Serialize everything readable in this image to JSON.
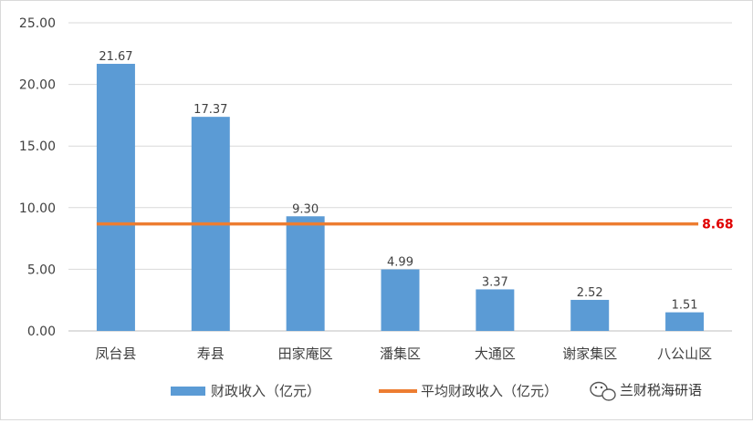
{
  "chart_data": {
    "type": "bar",
    "categories": [
      "凤台县",
      "寿县",
      "田家庵区",
      "潘集区",
      "大通区",
      "谢家集区",
      "八公山区"
    ],
    "series": [
      {
        "name": "财政收入（亿元）",
        "type": "bar",
        "values": [
          21.67,
          17.37,
          9.3,
          4.99,
          3.37,
          2.52,
          1.51
        ],
        "color": "#5b9bd5"
      },
      {
        "name": "平均财政收入（亿元）",
        "type": "line",
        "values": [
          8.68,
          8.68,
          8.68,
          8.68,
          8.68,
          8.68,
          8.68
        ],
        "color": "#ed7d31"
      }
    ],
    "data_labels": [
      "21.67",
      "17.37",
      "9.30",
      "4.99",
      "3.37",
      "2.52",
      "1.51"
    ],
    "average_label": "8.68",
    "average_label_color": "#e00000",
    "ylim": [
      0,
      25
    ],
    "yticks": [
      0,
      5,
      10,
      15,
      20,
      25
    ],
    "ytick_labels": [
      "0.00",
      "5.00",
      "10.00",
      "15.00",
      "20.00",
      "25.00"
    ],
    "grid": true,
    "legend_position": "bottom"
  },
  "watermark": {
    "icon": "wechat-icon",
    "text": "兰财税海研语"
  }
}
